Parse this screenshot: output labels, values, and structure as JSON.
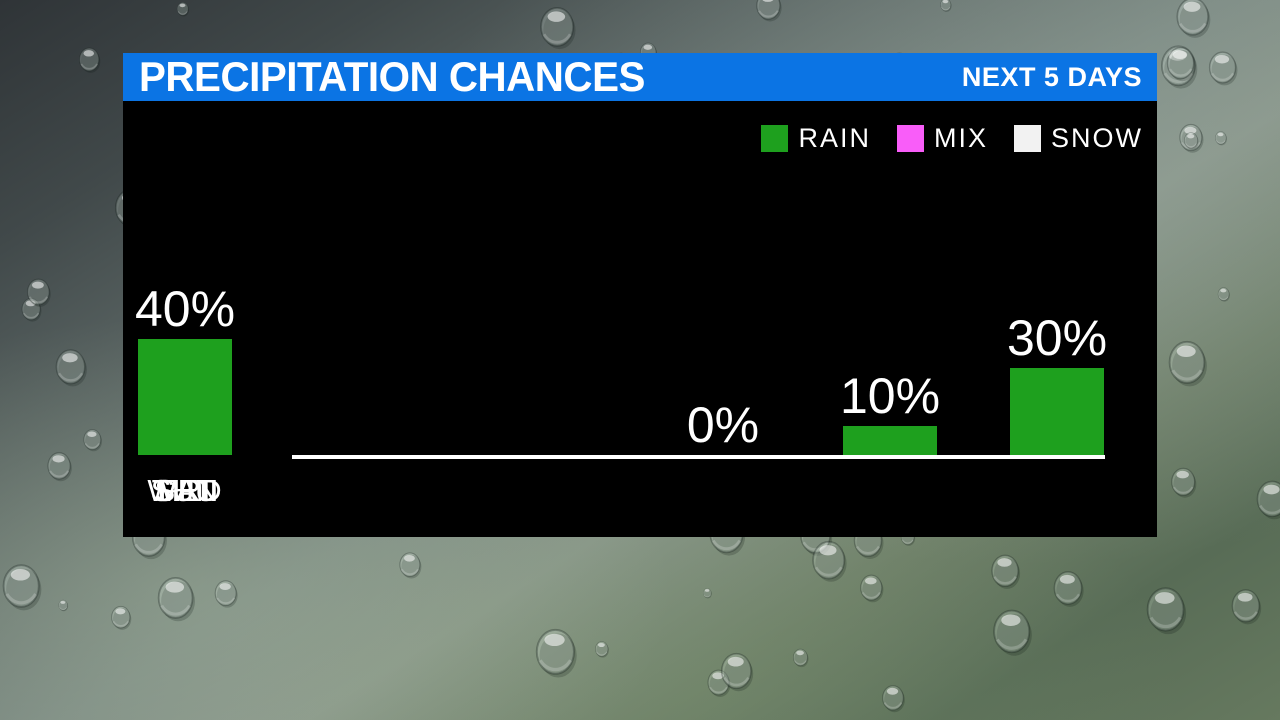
{
  "header": {
    "title": "PRECIPITATION CHANCES",
    "subtitle": "NEXT 5 DAYS"
  },
  "legend": [
    {
      "label": "RAIN",
      "color": "#1ea01e"
    },
    {
      "label": "MIX",
      "color": "#f95df9"
    },
    {
      "label": "SNOW",
      "color": "#f2f2f2"
    }
  ],
  "chart_data": {
    "type": "bar",
    "title": "PRECIPITATION CHANCES",
    "subtitle": "NEXT 5 DAYS",
    "categories": [
      "WED",
      "THU",
      "FRI",
      "SAT",
      "SUN"
    ],
    "values": [
      0,
      10,
      30,
      0,
      40
    ],
    "value_labels": [
      "0%",
      "10%",
      "30%",
      "0%",
      "40%"
    ],
    "series": [
      {
        "name": "RAIN",
        "color": "#1ea01e",
        "values": [
          0,
          10,
          30,
          0,
          40
        ]
      },
      {
        "name": "MIX",
        "color": "#f95df9",
        "values": [
          0,
          0,
          0,
          0,
          0
        ]
      },
      {
        "name": "SNOW",
        "color": "#f2f2f2",
        "values": [
          0,
          0,
          0,
          0,
          0
        ]
      }
    ],
    "ylabel": "",
    "xlabel": "",
    "ylim": [
      0,
      100
    ],
    "grid": false,
    "legend_position": "top-right",
    "axis_color": "#ffffff",
    "background": "#000000"
  },
  "colors": {
    "header_bg": "#0b74e4",
    "panel_bg": "#000000",
    "text": "#ffffff"
  }
}
